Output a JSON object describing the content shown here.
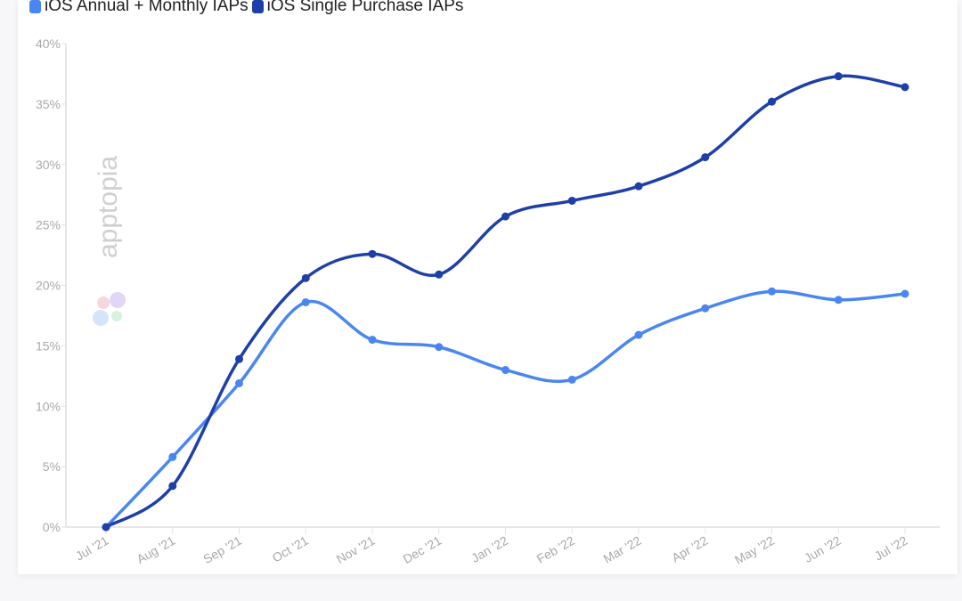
{
  "chart_data": {
    "type": "line",
    "title": "",
    "xlabel": "",
    "ylabel": "",
    "categories": [
      "Jul '21",
      "Aug '21",
      "Sep '21",
      "Oct '21",
      "Nov '21",
      "Dec '21",
      "Jan '22",
      "Feb '22",
      "Mar '22",
      "Apr '22",
      "May '22",
      "Jun '22",
      "Jul '22"
    ],
    "ylim": [
      0,
      40
    ],
    "yticks": [
      0,
      5,
      10,
      15,
      20,
      25,
      30,
      35,
      40
    ],
    "ytick_labels": [
      "0%",
      "5%",
      "10%",
      "15%",
      "20%",
      "25%",
      "30%",
      "35%",
      "40%"
    ],
    "grid": false,
    "legend_position": "top-left",
    "series": [
      {
        "name": "iOS Annual + Monthly IAPs",
        "color": "#4a86f0",
        "values": [
          0,
          5.8,
          11.9,
          18.6,
          15.5,
          14.9,
          13.0,
          12.2,
          15.9,
          18.1,
          19.5,
          18.8,
          19.3
        ]
      },
      {
        "name": "iOS Single Purchase IAPs",
        "color": "#1e3fa8",
        "values": [
          0,
          3.4,
          13.9,
          20.6,
          22.6,
          20.9,
          25.7,
          27.0,
          28.2,
          30.6,
          35.2,
          37.3,
          36.4
        ]
      }
    ]
  },
  "watermark": "apptopia"
}
